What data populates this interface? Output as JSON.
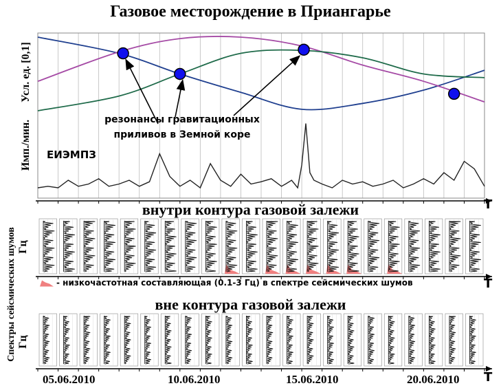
{
  "title": "Газовое месторождение в Приангарье",
  "ylabel_top": "Усл. ед. [0,1]",
  "ylabel_mid": "Имп./мин.",
  "ylabel_spectra": "Спектры сейсмических шумов",
  "ylabel_hz": "Гц",
  "annotation": [
    "резонансы гравитационных",
    "приливов в Земной коре"
  ],
  "emi_label": "ЕИЭМПЗ",
  "section_inside": "внутри контура газовой залежи",
  "section_outside": "вне контура газовой залежи",
  "legend_lowfreq": "- низкочастотная составляющая (0.1-3 Гц) в спектре сейсмических шумов",
  "time_axis_label": "T",
  "dates": [
    "05.06.2010",
    "10.06.2010",
    "15.06.2010",
    "20.06.2010"
  ],
  "colors": {
    "blue": "#1f3f8f",
    "magenta": "#a54aa5",
    "green": "#1f6b4a",
    "marker": "#1010ee",
    "lowfreq": "#f08080"
  },
  "chart_data": [
    {
      "type": "line",
      "xlim": [
        1,
        23
      ],
      "ylim": [
        0,
        1
      ],
      "series": [
        {
          "color": "blue",
          "x": [
            1,
            5,
            8,
            11,
            14,
            17,
            20,
            23
          ],
          "y": [
            1.0,
            0.78,
            0.5,
            0.25,
            0.02,
            0.1,
            0.28,
            0.55
          ]
        },
        {
          "color": "magenta",
          "x": [
            1,
            5,
            8,
            11,
            14,
            17,
            20,
            23
          ],
          "y": [
            0.4,
            0.8,
            0.98,
            1.0,
            0.88,
            0.62,
            0.4,
            0.12
          ]
        },
        {
          "color": "green",
          "x": [
            1,
            5,
            8,
            11,
            14,
            17,
            20,
            23
          ],
          "y": [
            0.0,
            0.2,
            0.5,
            0.78,
            0.82,
            0.72,
            0.5,
            0.45
          ]
        }
      ],
      "markers": [
        {
          "x": 5.2,
          "y": 0.78
        },
        {
          "x": 8.0,
          "y": 0.5
        },
        {
          "x": 14.1,
          "y": 0.83
        },
        {
          "x": 21.5,
          "y": 0.23
        }
      ]
    },
    {
      "type": "line",
      "xlim": [
        1,
        23
      ],
      "ylim": [
        0,
        1
      ],
      "series": [
        {
          "color": "black",
          "x": [
            1,
            1.5,
            2,
            2.5,
            3,
            3.5,
            4,
            4.5,
            5,
            5.5,
            6,
            6.5,
            7,
            7.5,
            8,
            8.5,
            9,
            9.5,
            10,
            10.5,
            11,
            11.5,
            12,
            12.5,
            13,
            13.2,
            13.5,
            13.8,
            14,
            14.2,
            14.4,
            14.6,
            15,
            15.5,
            16,
            16.5,
            17,
            17.5,
            18,
            18.5,
            19,
            19.5,
            20,
            20.5,
            21,
            21.5,
            22,
            22.5,
            23
          ],
          "y": [
            0.1,
            0.12,
            0.1,
            0.2,
            0.12,
            0.15,
            0.22,
            0.12,
            0.15,
            0.2,
            0.12,
            0.18,
            0.55,
            0.25,
            0.12,
            0.2,
            0.1,
            0.42,
            0.2,
            0.12,
            0.28,
            0.15,
            0.18,
            0.22,
            0.12,
            0.15,
            0.2,
            0.1,
            0.4,
            0.95,
            0.3,
            0.2,
            0.15,
            0.1,
            0.2,
            0.15,
            0.18,
            0.12,
            0.15,
            0.2,
            0.1,
            0.15,
            0.22,
            0.15,
            0.3,
            0.2,
            0.45,
            0.35,
            0.12
          ]
        }
      ]
    },
    {
      "type": "bar",
      "panel": "inside",
      "panels": 22,
      "lowfreq_panels": [
        9,
        11,
        12,
        13,
        14,
        15,
        17
      ]
    },
    {
      "type": "bar",
      "panel": "outside",
      "panels": 22
    }
  ]
}
